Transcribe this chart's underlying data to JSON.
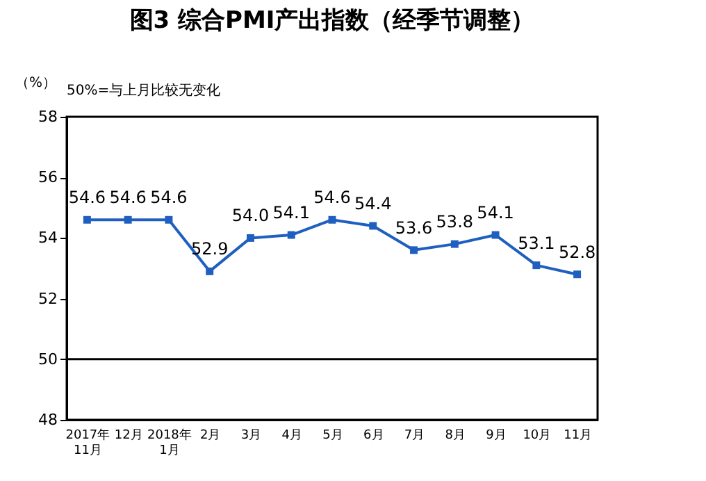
{
  "chart_data": {
    "type": "line",
    "title": "图3 综合PMI产出指数（经季节调整）",
    "ylabel": "（%）",
    "annotations": [
      "50%=与上月比较无变化"
    ],
    "categories": [
      "2017年\n11月",
      "12月",
      "2018年\n1月",
      "2月",
      "3月",
      "4月",
      "5月",
      "6月",
      "7月",
      "8月",
      "9月",
      "10月",
      "11月"
    ],
    "series": [
      {
        "color": "#1f5fbf",
        "values": [
          54.6,
          54.6,
          54.6,
          52.9,
          54.0,
          54.1,
          54.6,
          54.4,
          53.6,
          53.8,
          54.1,
          53.1,
          52.8
        ]
      }
    ],
    "ylim": [
      48,
      58
    ],
    "yticks": [
      48,
      50,
      52,
      54,
      56,
      58
    ],
    "ref_lines": [
      {
        "axis": "y",
        "value": 50,
        "color": "#000000"
      }
    ],
    "value_labels": [
      "54.6",
      "54.6",
      "54.6",
      "52.9",
      "54.0",
      "54.1",
      "54.6",
      "54.4",
      "53.6",
      "53.8",
      "54.1",
      "53.1",
      "52.8"
    ],
    "marker": "square",
    "grid": false,
    "legend": false
  }
}
